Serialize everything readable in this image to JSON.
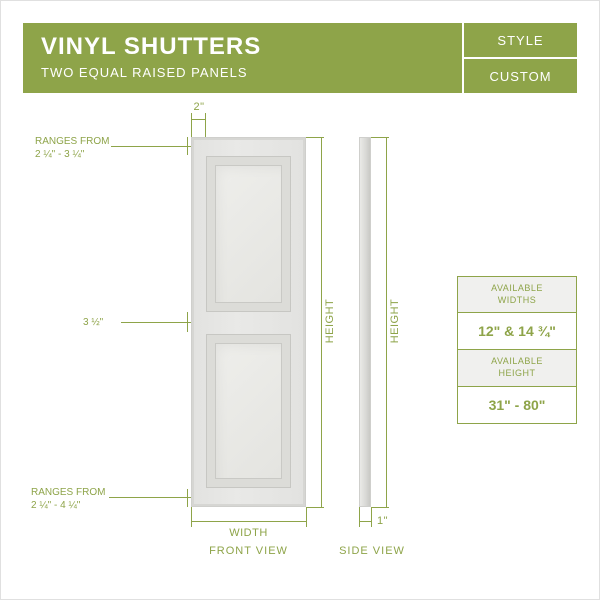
{
  "colors": {
    "accent": "#8ea449",
    "bg": "#ffffff",
    "shutter": "#e4e4e1"
  },
  "header": {
    "title": "VINYL SHUTTERS",
    "subtitle": "TWO EQUAL RAISED PANELS",
    "right_top": "STYLE",
    "right_bottom": "CUSTOM"
  },
  "dims": {
    "frame_top": "2\"",
    "divider": "3 ½\"",
    "side_depth": "1\"",
    "top_range_l1": "RANGES FROM",
    "top_range_l2": "2 ¼\" - 3 ¼\"",
    "bot_range_l1": "RANGES FROM",
    "bot_range_l2": "2 ¼\" - 4 ¼\"",
    "height": "HEIGHT",
    "width": "WIDTH",
    "front_view": "FRONT VIEW",
    "side_view": "SIDE VIEW"
  },
  "info": {
    "widths_label": "AVAILABLE\nWIDTHS",
    "widths_value": "12\"  &  14 ¾\"",
    "height_label": "AVAILABLE\nHEIGHT",
    "height_value": "31\" - 80\""
  }
}
